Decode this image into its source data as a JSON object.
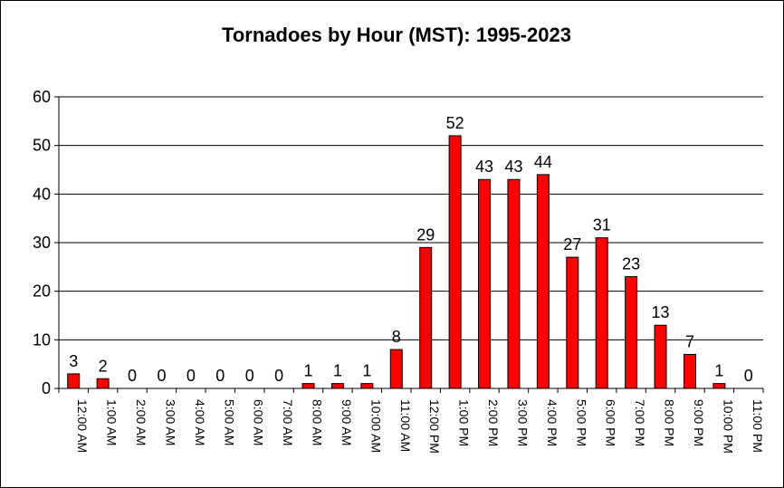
{
  "chart_data": {
    "type": "bar",
    "title": "Tornadoes by Hour (MST): 1995-2023",
    "xlabel": "",
    "ylabel": "",
    "ylim": [
      0,
      60
    ],
    "yticks": [
      0,
      10,
      20,
      30,
      40,
      50,
      60
    ],
    "grid": true,
    "legend": "none",
    "bar_color": "#ff0000",
    "categories": [
      "12:00 AM",
      "1:00 AM",
      "2:00 AM",
      "3:00 AM",
      "4:00 AM",
      "5:00 AM",
      "6:00 AM",
      "7:00 AM",
      "8:00 AM",
      "9:00 AM",
      "10:00 AM",
      "11:00 AM",
      "12:00 PM",
      "1:00 PM",
      "2:00 PM",
      "3:00 PM",
      "4:00 PM",
      "5:00 PM",
      "6:00 PM",
      "7:00 PM",
      "8:00 PM",
      "9:00 PM",
      "10:00 PM",
      "11:00 PM"
    ],
    "values": [
      3,
      2,
      0,
      0,
      0,
      0,
      0,
      0,
      1,
      1,
      1,
      8,
      29,
      52,
      43,
      43,
      44,
      27,
      31,
      23,
      13,
      7,
      1,
      0
    ]
  }
}
